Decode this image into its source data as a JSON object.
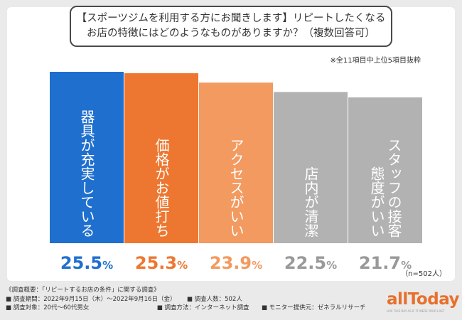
{
  "title": {
    "line1": "【スポーツジムを利用する方にお聞きします】リピートしたくなる",
    "line2": "お店の特徴にはどのようなものがありますか？（複数回答可）"
  },
  "note": "※全11項目中上位5項目抜粋",
  "sample_note": "（n=502人）",
  "footer": {
    "line1": "《調査概要：「リピートするお店の条件」に関する調査》",
    "line2a": "■ 調査期間：2022年9月15日（木）〜2022年9月16日（金）",
    "line2b": "■ 調査人数：502人",
    "line3a": "■ 調査対象：20代〜60代男女",
    "line3b": "■ 調査方法：インターネット調査",
    "line3c": "■ モニター提供元：ゼネラルリサーチ"
  },
  "logo": {
    "text": "allToday",
    "tagline": "LIVE THIS DAY AS IF IT WERE YOUR LAST"
  },
  "chart_data": {
    "type": "bar",
    "categories": [
      "器具が充実している",
      "価格がお値打ち",
      "アクセスがいい",
      "店内が清潔",
      "スタッフの接客態度がいい"
    ],
    "category_lines": [
      [
        "器具が充実している"
      ],
      [
        "価格がお値打ち"
      ],
      [
        "アクセスがいい"
      ],
      [
        "店内が清潔"
      ],
      [
        "スタッフの接客",
        "態度がいい"
      ]
    ],
    "values": [
      25.5,
      25.3,
      23.9,
      22.5,
      21.7
    ],
    "value_labels": [
      "25.5",
      "25.3",
      "23.9",
      "22.5",
      "21.7"
    ],
    "unit": "%",
    "bar_colors": [
      "#1f6fce",
      "#ed7730",
      "#f29a60",
      "#b2b2b2",
      "#b2b2b2"
    ],
    "label_colors": [
      "#1f6fce",
      "#ed7730",
      "#f29a60",
      "#999999",
      "#999999"
    ],
    "ylim": [
      0,
      25.5
    ]
  }
}
